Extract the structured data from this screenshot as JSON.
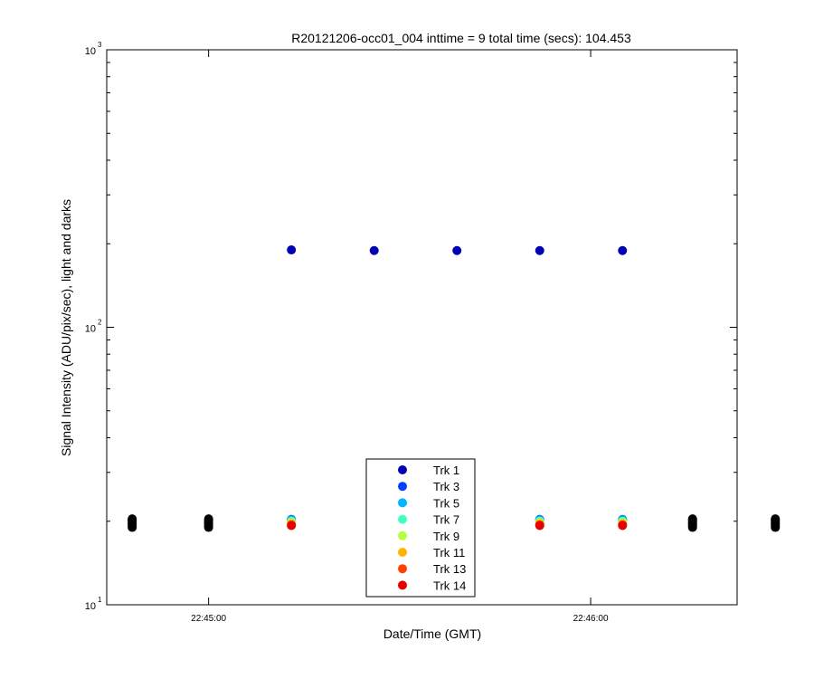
{
  "chart_data": {
    "type": "scatter",
    "title": "R20121206-occ01_004 inttime = 9 total time (secs): 104.453",
    "xlabel": "Date/Time (GMT)",
    "ylabel": "Signal Intensity (ADU/pix/sec), light and darks",
    "y_scale": "log",
    "ylim": [
      10,
      1000
    ],
    "xlim": [
      "22:44:44",
      "22:46:23"
    ],
    "x_ticks": [
      "22:45:00",
      "22:46:00"
    ],
    "y_ticks": [
      {
        "base": "10",
        "exp": "1"
      },
      {
        "base": "10",
        "exp": "2"
      },
      {
        "base": "10",
        "exp": "3"
      }
    ],
    "grid": false,
    "legend_position": "bottom-center",
    "series": [
      {
        "name": "Trk 1",
        "color": "#0000b4",
        "points": [
          [
            "22:45:13",
            190
          ],
          [
            "22:45:26",
            189
          ],
          [
            "22:45:39",
            189
          ],
          [
            "22:45:52",
            189
          ],
          [
            "22:46:05",
            189
          ]
        ]
      },
      {
        "name": "Trk 3",
        "color": "#0040ff",
        "points": [
          [
            "22:45:13",
            20.3
          ],
          [
            "22:45:52",
            20.3
          ],
          [
            "22:46:05",
            20.3
          ]
        ]
      },
      {
        "name": "Trk 5",
        "color": "#00b4ff",
        "points": [
          [
            "22:45:13",
            20.2
          ],
          [
            "22:45:52",
            20.2
          ],
          [
            "22:46:05",
            20.2
          ]
        ]
      },
      {
        "name": "Trk 7",
        "color": "#40ffbf",
        "points": [
          [
            "22:45:13",
            20.0
          ],
          [
            "22:45:52",
            20.0
          ],
          [
            "22:46:05",
            20.0
          ]
        ]
      },
      {
        "name": "Trk 9",
        "color": "#b4ff40",
        "points": [
          [
            "22:45:13",
            19.8
          ],
          [
            "22:45:52",
            19.8
          ],
          [
            "22:46:05",
            19.8
          ]
        ]
      },
      {
        "name": "Trk 11",
        "color": "#ffb400",
        "points": [
          [
            "22:45:13",
            19.6
          ],
          [
            "22:45:52",
            19.6
          ],
          [
            "22:46:05",
            19.6
          ]
        ]
      },
      {
        "name": "Trk 13",
        "color": "#ff4000",
        "points": [
          [
            "22:45:13",
            19.4
          ],
          [
            "22:45:52",
            19.4
          ],
          [
            "22:46:05",
            19.4
          ]
        ]
      },
      {
        "name": "Trk 14",
        "color": "#e60000",
        "points": [
          [
            "22:45:13",
            19.3
          ],
          [
            "22:45:52",
            19.3
          ],
          [
            "22:46:05",
            19.3
          ]
        ]
      }
    ],
    "darks": {
      "color": "#000000",
      "times": [
        "22:44:48",
        "22:45:00",
        "22:46:16",
        "22:46:29"
      ],
      "values": [
        19.0,
        19.2,
        19.4,
        19.6,
        19.8,
        20.0,
        20.2,
        20.4
      ]
    }
  }
}
